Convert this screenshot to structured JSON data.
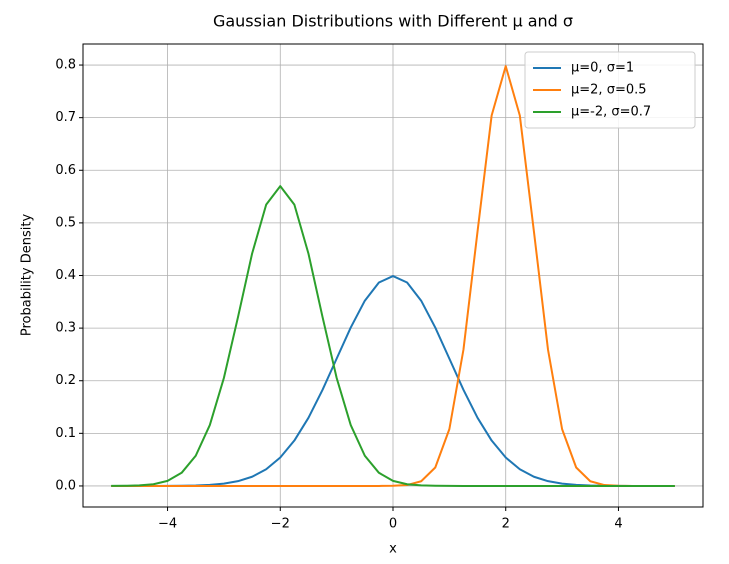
{
  "chart_data": {
    "type": "line",
    "title": "Gaussian Distributions with Different μ and σ",
    "x_label": "x",
    "y_label": "Probability Density",
    "x": [
      -5,
      -4.75,
      -4.5,
      -4.25,
      -4,
      -3.75,
      -3.5,
      -3.25,
      -3,
      -2.75,
      -2.5,
      -2.25,
      -2,
      -1.75,
      -1.5,
      -1.25,
      -1,
      -0.75,
      -0.5,
      -0.25,
      0,
      0.25,
      0.5,
      0.75,
      1,
      1.25,
      1.5,
      1.75,
      2,
      2.25,
      2.5,
      2.75,
      3,
      3.25,
      3.5,
      3.75,
      4,
      4.25,
      4.5,
      4.75,
      5
    ],
    "series": [
      {
        "name": "μ=0, σ=1",
        "color": "#1f77b4",
        "values": [
          0,
          0,
          0,
          0,
          0.0001,
          0.0004,
          0.0009,
          0.002,
          0.0044,
          0.0091,
          0.0175,
          0.0317,
          0.054,
          0.0863,
          0.1295,
          0.1827,
          0.242,
          0.3011,
          0.3521,
          0.3867,
          0.3989,
          0.3867,
          0.3521,
          0.3011,
          0.242,
          0.1827,
          0.1295,
          0.0863,
          0.054,
          0.0317,
          0.0175,
          0.0091,
          0.0044,
          0.002,
          0.0009,
          0.0004,
          0.0001,
          0,
          0,
          0,
          0
        ]
      },
      {
        "name": "μ=2, σ=0.5",
        "color": "#ff7f0e",
        "values": [
          0,
          0,
          0,
          0,
          0,
          0,
          0,
          0,
          0,
          0,
          0,
          0,
          0,
          0,
          0,
          0,
          0,
          0,
          0,
          0,
          0.0003,
          0.0017,
          0.0089,
          0.0351,
          0.108,
          0.2591,
          0.4839,
          0.7041,
          0.7979,
          0.7041,
          0.4839,
          0.2591,
          0.108,
          0.0351,
          0.0089,
          0.0017,
          0.0003,
          0,
          0,
          0,
          0
        ]
      },
      {
        "name": "μ=-2, σ=0.7",
        "color": "#2ca02c",
        "values": [
          0.0001,
          0.0003,
          0.001,
          0.0033,
          0.0096,
          0.025,
          0.0574,
          0.1157,
          0.2054,
          0.321,
          0.4416,
          0.5347,
          0.5699,
          0.5347,
          0.4416,
          0.321,
          0.2054,
          0.1157,
          0.0574,
          0.025,
          0.0096,
          0.0033,
          0.001,
          0.0003,
          0.0001,
          0,
          0,
          0,
          0,
          0,
          0,
          0,
          0,
          0,
          0,
          0,
          0,
          0,
          0,
          0,
          0
        ]
      }
    ],
    "xlim": [
      -5.5,
      5.5
    ],
    "ylim": [
      -0.04,
      0.84
    ],
    "xticks": [
      {
        "value": -4,
        "label": "−4"
      },
      {
        "value": -2,
        "label": "−2"
      },
      0,
      2,
      4
    ],
    "yticks": [
      {
        "value": 0,
        "label": "0.0"
      },
      0.1,
      0.2,
      0.3,
      0.4,
      0.5,
      0.6,
      0.7,
      0.8
    ],
    "grid": true,
    "legend": "upper right"
  }
}
